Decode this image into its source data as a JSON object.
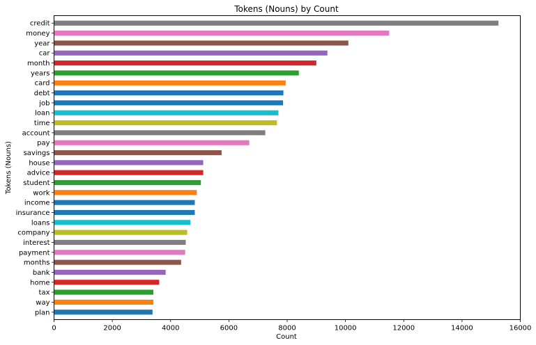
{
  "chart_data": {
    "type": "bar",
    "orientation": "horizontal",
    "title": "Tokens (Nouns) by Count",
    "xlabel": "Count",
    "ylabel": "Tokens (Nouns)",
    "xlim": [
      0,
      16000
    ],
    "xticks": [
      0,
      2000,
      4000,
      6000,
      8000,
      10000,
      12000,
      14000,
      16000
    ],
    "grid": false,
    "legend": "none",
    "categories": [
      "credit",
      "money",
      "year",
      "car",
      "month",
      "years",
      "card",
      "debt",
      "job",
      "loan",
      "time",
      "account",
      "pay",
      "savings",
      "house",
      "advice",
      "student",
      "work",
      "income",
      "insurance",
      "loans",
      "company",
      "interest",
      "payment",
      "months",
      "bank",
      "home",
      "tax",
      "way",
      "plan"
    ],
    "values": [
      15250,
      11500,
      10100,
      9380,
      9000,
      8400,
      7950,
      7870,
      7860,
      7700,
      7650,
      7250,
      6700,
      5750,
      5120,
      5120,
      5040,
      4900,
      4830,
      4830,
      4680,
      4570,
      4520,
      4500,
      4360,
      3830,
      3610,
      3410,
      3410,
      3380
    ],
    "colors": [
      "#7f7f7f",
      "#e377c2",
      "#8c564b",
      "#9467bd",
      "#d62728",
      "#2ca02c",
      "#ff7f0e",
      "#1f77b4",
      "#1f77b4",
      "#17becf",
      "#bcbd22",
      "#7f7f7f",
      "#e377c2",
      "#8c564b",
      "#9467bd",
      "#d62728",
      "#2ca02c",
      "#ff7f0e",
      "#1f77b4",
      "#1f77b4",
      "#17becf",
      "#bcbd22",
      "#7f7f7f",
      "#e377c2",
      "#8c564b",
      "#9467bd",
      "#d62728",
      "#2ca02c",
      "#ff7f0e",
      "#1f77b4"
    ]
  }
}
